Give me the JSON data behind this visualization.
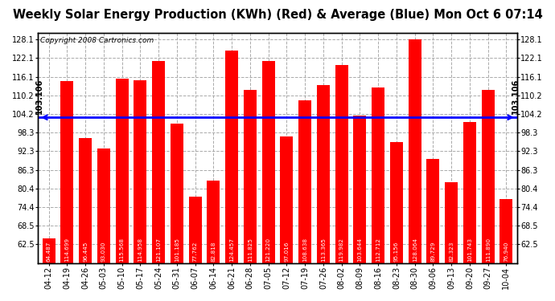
{
  "title": "Weekly Solar Energy Production (KWh) (Red) & Average (Blue) Mon Oct 6 07:14",
  "copyright": "Copyright 2008 Cartronics.com",
  "average": 103.106,
  "average_label": "103.106",
  "categories": [
    "04-12",
    "04-19",
    "04-26",
    "05-03",
    "05-10",
    "05-17",
    "05-24",
    "05-31",
    "06-07",
    "06-14",
    "06-21",
    "06-28",
    "07-05",
    "07-12",
    "07-19",
    "07-26",
    "08-02",
    "08-09",
    "08-16",
    "08-23",
    "08-30",
    "09-06",
    "09-13",
    "09-20",
    "09-27",
    "10-04"
  ],
  "values": [
    64.487,
    114.699,
    96.445,
    93.03,
    115.568,
    114.958,
    121.107,
    101.185,
    77.762,
    82.818,
    124.457,
    111.825,
    121.22,
    97.016,
    108.638,
    113.365,
    119.982,
    103.644,
    112.712,
    95.156,
    128.064,
    89.729,
    82.323,
    101.743,
    111.89,
    76.94
  ],
  "bar_color": "#ff0000",
  "line_color": "#0000ff",
  "background_color": "#ffffff",
  "plot_bg_color": "#ffffff",
  "grid_color": "#aaaaaa",
  "ylim_min": 56.5,
  "ylim_max": 130.1,
  "yticks": [
    62.5,
    68.5,
    74.4,
    80.4,
    86.3,
    92.3,
    98.3,
    104.2,
    110.2,
    116.1,
    122.1,
    128.1
  ],
  "title_fontsize": 10.5,
  "copyright_fontsize": 6.5,
  "tick_fontsize": 7,
  "bar_label_fontsize": 5.2,
  "bar_bottom": 56.5
}
